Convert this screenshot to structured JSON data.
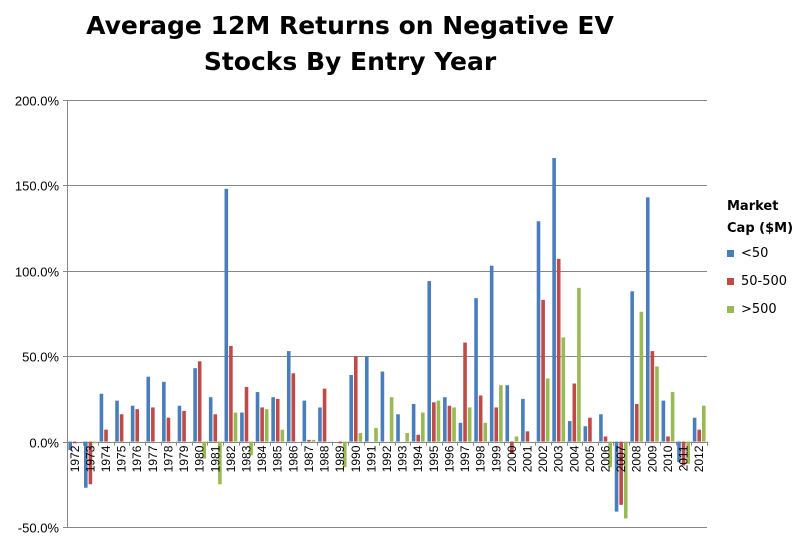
{
  "chart_data": {
    "type": "bar",
    "title": "Average 12M Returns on Negative EV Stocks By Entry Year",
    "xlabel": "",
    "ylabel": "",
    "ylim": [
      -50,
      200
    ],
    "yticks": [
      -50,
      0,
      50,
      100,
      150,
      200
    ],
    "ytick_labels": [
      "-50.0%",
      "0.0%",
      "50.0%",
      "100.0%",
      "150.0%",
      "200.0%"
    ],
    "grid": "horizontal",
    "legend_title": "Market Cap ($M)",
    "legend_position": "right",
    "categories": [
      "1972",
      "1973",
      "1974",
      "1975",
      "1976",
      "1977",
      "1978",
      "1979",
      "1980",
      "1981",
      "1982",
      "1983",
      "1984",
      "1985",
      "1986",
      "1987",
      "1988",
      "1989",
      "1990",
      "1991",
      "1992",
      "1993",
      "1994",
      "1995",
      "1996",
      "1997",
      "1998",
      "1999",
      "2000",
      "2001",
      "2002",
      "2003",
      "2004",
      "2005",
      "2006",
      "2007",
      "2008",
      "2009",
      "2010",
      "2011",
      "2012"
    ],
    "series": [
      {
        "name": "<50",
        "color": "#4a7ebb",
        "values": [
          -5,
          -27,
          28,
          24,
          21,
          38,
          35,
          21,
          43,
          26,
          148,
          17,
          29,
          26,
          53,
          24,
          20,
          0,
          39,
          50,
          41,
          16,
          22,
          94,
          26,
          11,
          84,
          103,
          33,
          25,
          129,
          166,
          12,
          9,
          16,
          -41,
          88,
          143,
          24,
          -12,
          14
        ]
      },
      {
        "name": "50-500",
        "color": "#be4b48",
        "values": [
          -1,
          -25,
          7,
          16,
          19,
          20,
          14,
          18,
          47,
          16,
          56,
          32,
          20,
          25,
          40,
          1,
          31,
          -1,
          50,
          0,
          0,
          0,
          4,
          23,
          21,
          58,
          27,
          20,
          -7,
          6,
          83,
          107,
          34,
          14,
          3,
          -37,
          22,
          53,
          3,
          -14,
          7
        ]
      },
      {
        "name": ">500",
        "color": "#98b954",
        "values": [
          0,
          -1,
          0,
          0,
          0,
          0,
          0,
          0,
          -10,
          -25,
          17,
          -8,
          19,
          7,
          0,
          1,
          0,
          -15,
          5,
          8,
          26,
          5,
          17,
          24,
          20,
          20,
          11,
          33,
          3,
          0,
          37,
          61,
          90,
          0,
          -15,
          -45,
          76,
          44,
          29,
          -13,
          21
        ]
      }
    ]
  }
}
